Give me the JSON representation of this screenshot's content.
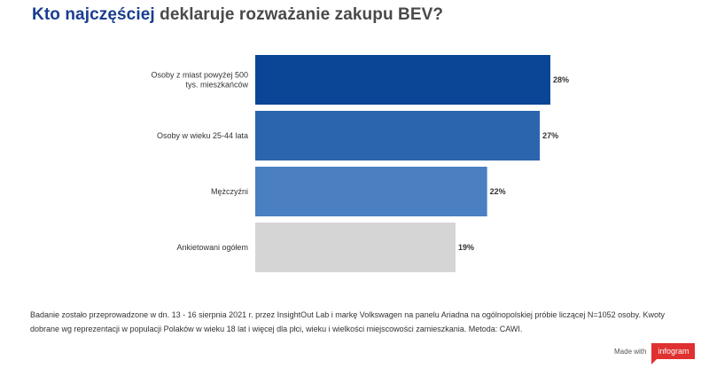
{
  "title": {
    "highlight": "Kto najczęściej",
    "rest": " deklaruje rozważanie zakupu BEV?",
    "highlight_color": "#1a3e8f"
  },
  "chart_data": {
    "type": "bar",
    "orientation": "horizontal",
    "categories": [
      "Osoby z miast powyżej 500 tys. mieszkańców",
      "Osoby w wieku 25-44 lata",
      "Mężczyźni",
      "Ankietowani ogółem"
    ],
    "values": [
      28,
      27,
      22,
      19
    ],
    "value_labels": [
      "28%",
      "27%",
      "22%",
      "19%"
    ],
    "colors": [
      "#0b4596",
      "#2b65ae",
      "#4a7fc1",
      "#d5d5d5"
    ],
    "xlim": [
      0,
      28
    ],
    "grid": false,
    "legend": "none"
  },
  "footnote": "Badanie zostało przeprowadzone w dn. 13 - 16 sierpnia 2021 r. przez InsightOut Lab i markę Volkswagen na panelu Ariadna na ogólnopolskiej próbie liczącej N=1052 osoby. Kwoty dobrane wg reprezentacji w populacji Polaków w wieku 18 lat i więcej dla płci, wieku i wielkości miejscowości zamieszkania. Metoda: CAWI.",
  "branding": {
    "made_with": "Made with",
    "logo": "infogram"
  }
}
